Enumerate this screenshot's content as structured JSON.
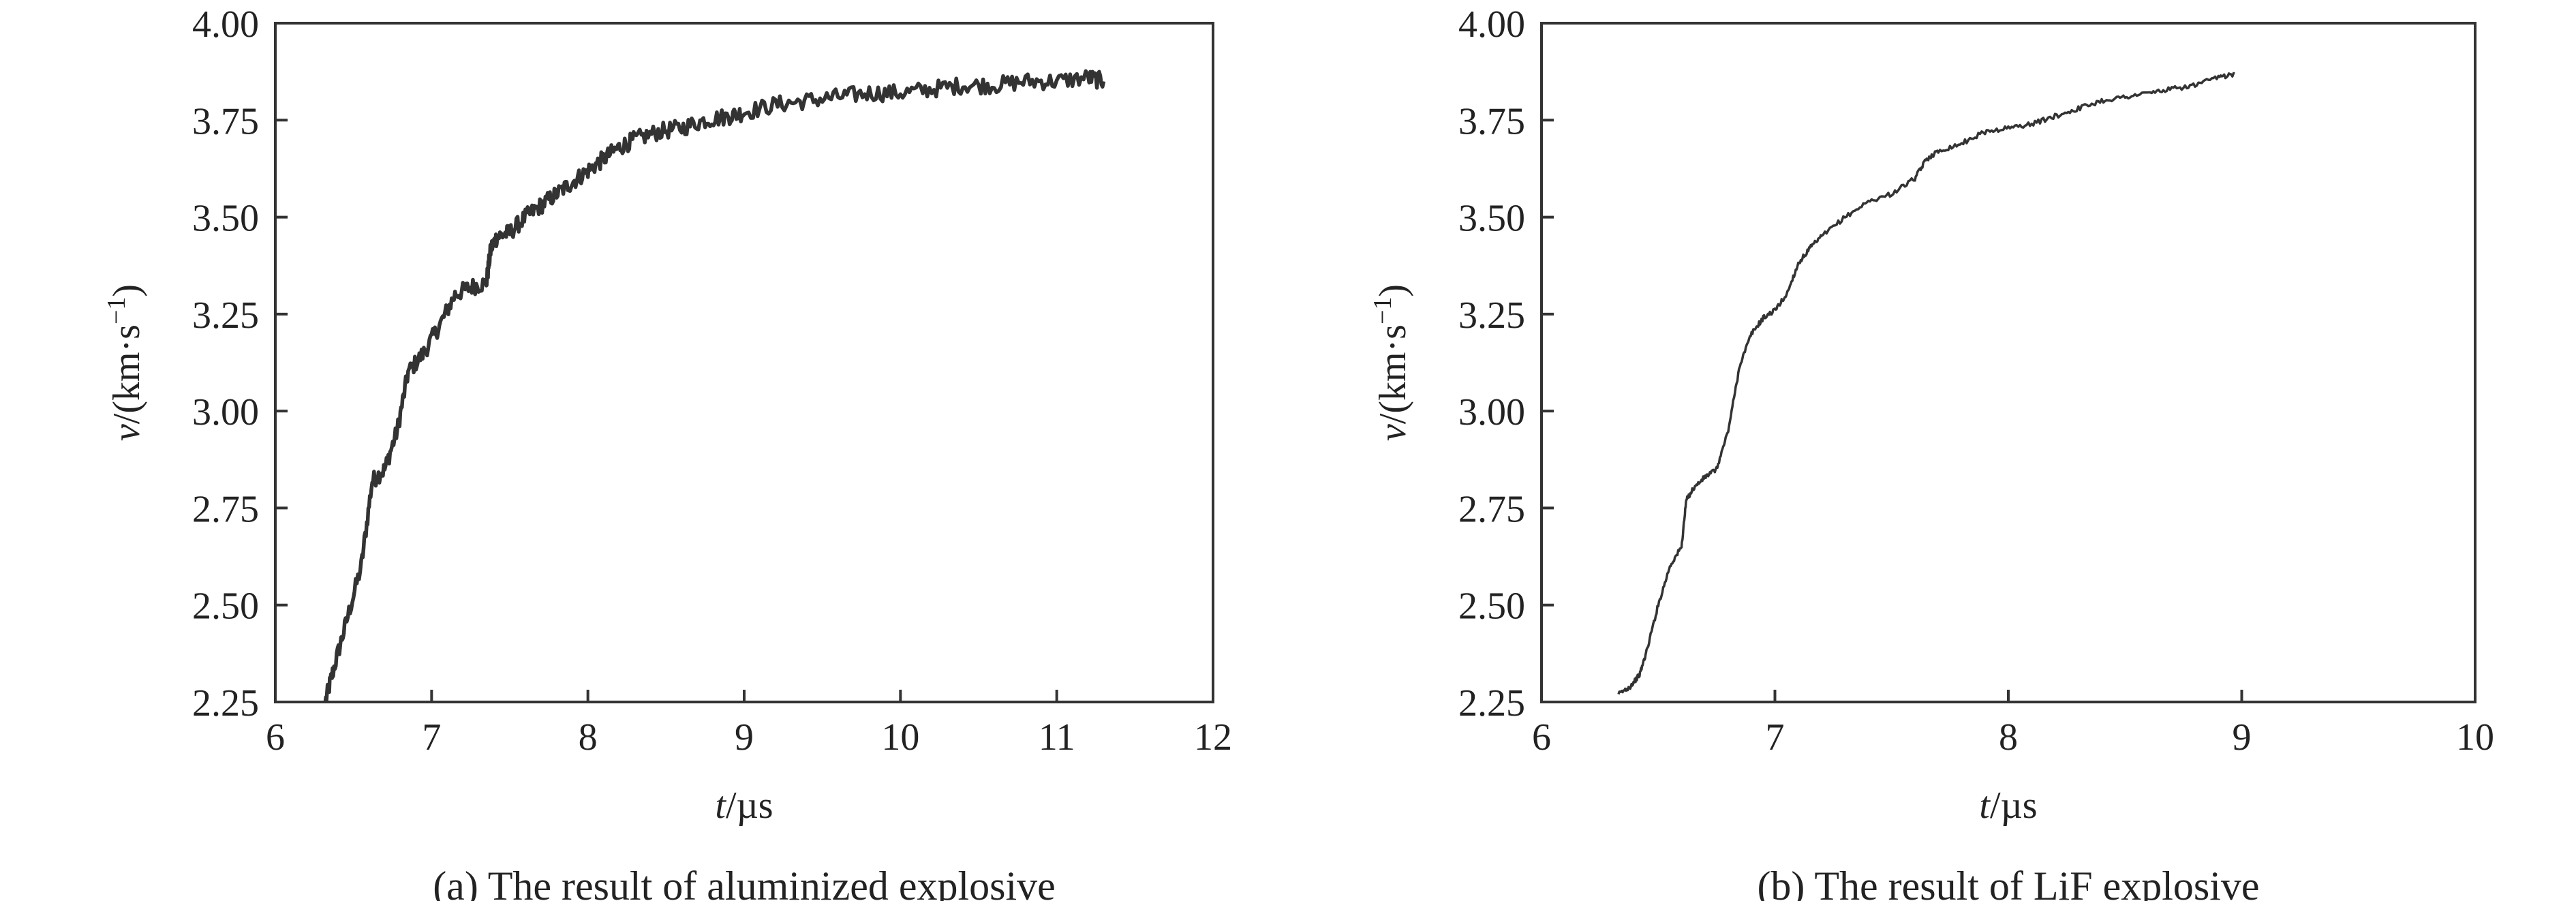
{
  "chart_data": [
    {
      "type": "line",
      "xlabel_var": "t",
      "xlabel_unit": "/µs",
      "ylabel_var": "v",
      "ylabel_unit_pre": "/(km·s",
      "ylabel_unit_sup": "−1",
      "ylabel_unit_post": ")",
      "xlim": [
        6,
        12
      ],
      "ylim": [
        2.25,
        4.0
      ],
      "x_ticks": [
        "6",
        "7",
        "8",
        "9",
        "10",
        "11",
        "12"
      ],
      "y_ticks": [
        "2.25",
        "2.50",
        "2.75",
        "3.00",
        "3.25",
        "3.50",
        "3.75",
        "4.00"
      ],
      "caption": "(a) The result of aluminized explosive",
      "grid": false,
      "noise": 0.022,
      "series": [
        {
          "color": "#333333",
          "x": [
            6.32,
            6.37,
            6.45,
            6.55,
            6.62,
            6.7,
            6.78,
            6.85,
            6.95,
            7.05,
            7.15,
            7.25,
            7.35,
            7.38,
            7.42,
            7.5,
            7.6,
            7.7,
            7.8,
            7.9,
            8.0,
            8.1,
            8.2,
            8.3,
            8.45,
            8.6,
            8.75,
            8.9,
            9.0,
            9.2,
            9.4,
            9.6,
            9.8,
            10.0,
            10.2,
            10.4,
            10.6,
            10.8,
            11.0,
            11.2,
            11.3
          ],
          "y": [
            2.25,
            2.33,
            2.45,
            2.6,
            2.82,
            2.85,
            2.95,
            3.1,
            3.15,
            3.22,
            3.3,
            3.32,
            3.33,
            3.42,
            3.45,
            3.46,
            3.5,
            3.53,
            3.56,
            3.59,
            3.62,
            3.65,
            3.68,
            3.7,
            3.72,
            3.73,
            3.75,
            3.76,
            3.77,
            3.79,
            3.8,
            3.81,
            3.82,
            3.82,
            3.83,
            3.84,
            3.84,
            3.85,
            3.85,
            3.86,
            3.85
          ]
        }
      ]
    },
    {
      "type": "line",
      "xlabel_var": "t",
      "xlabel_unit": "/µs",
      "ylabel_var": "v",
      "ylabel_unit_pre": "/(km·s",
      "ylabel_unit_sup": "−1",
      "ylabel_unit_post": ")",
      "xlim": [
        6,
        10
      ],
      "ylim": [
        2.25,
        4.0
      ],
      "x_ticks": [
        "6",
        "7",
        "8",
        "9",
        "10"
      ],
      "y_ticks": [
        "2.25",
        "2.50",
        "2.75",
        "3.00",
        "3.25",
        "3.50",
        "3.75",
        "4.00"
      ],
      "caption": "(b) The result of LiF explosive",
      "grid": false,
      "noise": 0.006,
      "series": [
        {
          "color": "#333333",
          "x": [
            6.33,
            6.38,
            6.42,
            6.45,
            6.5,
            6.55,
            6.6,
            6.62,
            6.65,
            6.7,
            6.75,
            6.8,
            6.85,
            6.9,
            6.95,
            7.0,
            7.05,
            7.1,
            7.15,
            7.2,
            7.3,
            7.4,
            7.5,
            7.6,
            7.65,
            7.7,
            7.8,
            7.9,
            8.0,
            8.1,
            8.2,
            8.3,
            8.4,
            8.5,
            8.6,
            8.7,
            8.8,
            8.9,
            8.97
          ],
          "y": [
            2.27,
            2.29,
            2.32,
            2.38,
            2.5,
            2.6,
            2.65,
            2.77,
            2.8,
            2.83,
            2.85,
            2.95,
            3.12,
            3.2,
            3.24,
            3.26,
            3.3,
            3.38,
            3.42,
            3.45,
            3.5,
            3.54,
            3.56,
            3.6,
            3.65,
            3.67,
            3.69,
            3.72,
            3.73,
            3.74,
            3.76,
            3.78,
            3.8,
            3.81,
            3.82,
            3.83,
            3.84,
            3.86,
            3.87
          ]
        }
      ]
    }
  ]
}
